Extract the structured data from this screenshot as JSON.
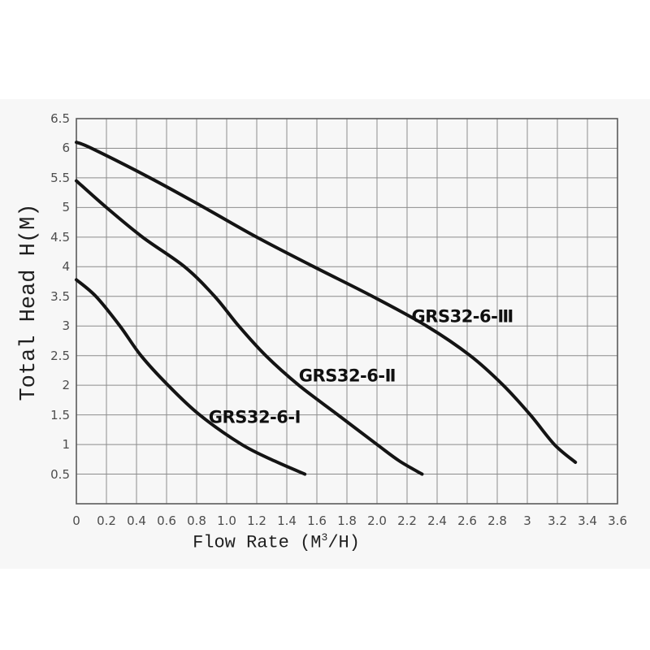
{
  "page": {
    "background": "#ffffff",
    "panel_background": "#f7f7f7"
  },
  "chart_data": {
    "type": "line",
    "title": "",
    "ylabel": "Total Head H(M)",
    "xlabel_prefix": "Flow Rate (M",
    "xlabel_sup": "3",
    "xlabel_suffix": "/H)",
    "xlim": [
      0,
      3.6
    ],
    "ylim": [
      0,
      6.5
    ],
    "grid": true,
    "grid_x_step": 0.2,
    "grid_y_step": 0.5,
    "grid_color": "#8c8c8c",
    "border_color": "#5a5a5a",
    "curve_color": "#141414",
    "tick_color": "#4d4d4d",
    "x_tick_labels": [
      "0",
      "0.2",
      "0.4",
      "0.6",
      "0.8",
      "1.0",
      "1.2",
      "1.4",
      "1.6",
      "1.8",
      "2.0",
      "2.2",
      "2.4",
      "2.6",
      "2.8",
      "3",
      "3.2",
      "3.4",
      "3.6"
    ],
    "x_tick_values": [
      0,
      0.2,
      0.4,
      0.6,
      0.8,
      1.0,
      1.2,
      1.4,
      1.6,
      1.8,
      2.0,
      2.2,
      2.4,
      2.6,
      2.8,
      3.0,
      3.2,
      3.4,
      3.6
    ],
    "y_tick_labels": [
      "0.5",
      "1",
      "1.5",
      "2",
      "2.5",
      "3",
      "3.5",
      "4",
      "4.5",
      "5",
      "5.5",
      "6",
      "6.5"
    ],
    "y_tick_values": [
      0.5,
      1,
      1.5,
      2,
      2.5,
      3,
      3.5,
      4,
      4.5,
      5,
      5.5,
      6,
      6.5
    ],
    "legend_position": "labels-on-curves",
    "series": [
      {
        "name": "GRS32-6-I",
        "label": "GRS32-6-Ⅰ",
        "label_anchor": [
          0.88,
          1.45
        ],
        "points": [
          [
            0,
            3.78
          ],
          [
            0.13,
            3.5
          ],
          [
            0.29,
            3.0
          ],
          [
            0.43,
            2.5
          ],
          [
            0.61,
            2.0
          ],
          [
            0.82,
            1.5
          ],
          [
            1.1,
            1.0
          ],
          [
            1.32,
            0.72
          ],
          [
            1.52,
            0.5
          ]
        ]
      },
      {
        "name": "GRS32-6-II",
        "label": "GRS32-6-Ⅱ",
        "label_anchor": [
          1.48,
          2.15
        ],
        "points": [
          [
            0,
            5.45
          ],
          [
            0.2,
            5.0
          ],
          [
            0.44,
            4.5
          ],
          [
            0.72,
            4.0
          ],
          [
            0.92,
            3.5
          ],
          [
            1.08,
            3.0
          ],
          [
            1.26,
            2.5
          ],
          [
            1.48,
            2.0
          ],
          [
            1.74,
            1.5
          ],
          [
            2.0,
            1.0
          ],
          [
            2.15,
            0.72
          ],
          [
            2.3,
            0.5
          ]
        ]
      },
      {
        "name": "GRS32-6-III",
        "label": "GRS32-6-Ⅲ",
        "label_anchor": [
          2.23,
          3.15
        ],
        "points": [
          [
            0,
            6.1
          ],
          [
            0.1,
            6.0
          ],
          [
            0.49,
            5.5
          ],
          [
            0.85,
            5.0
          ],
          [
            1.2,
            4.5
          ],
          [
            1.58,
            4.0
          ],
          [
            1.97,
            3.5
          ],
          [
            2.33,
            3.0
          ],
          [
            2.62,
            2.5
          ],
          [
            2.84,
            2.0
          ],
          [
            3.02,
            1.5
          ],
          [
            3.18,
            1.0
          ],
          [
            3.32,
            0.7
          ]
        ]
      }
    ]
  }
}
